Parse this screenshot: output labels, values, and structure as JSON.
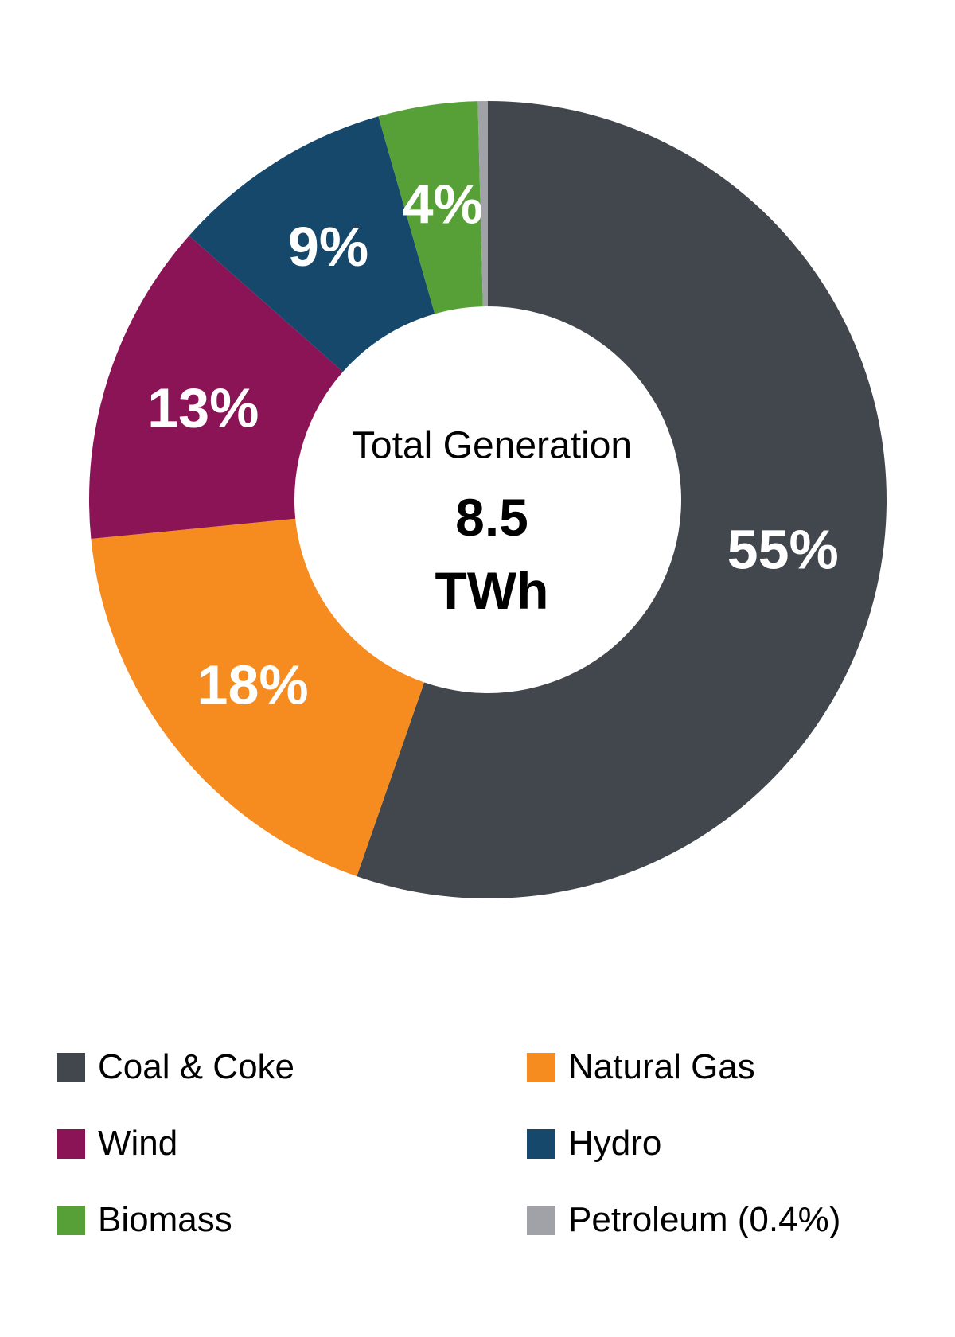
{
  "chart_data": {
    "type": "pie",
    "donut": true,
    "direction": "clockwise",
    "start_angle": 0,
    "background_color": "#ffffff",
    "percent_label_color": "#ffffff",
    "center_label": {
      "line1": "Total Generation",
      "value": "8.5",
      "unit": "TWh"
    },
    "slices": [
      {
        "name": "Coal & Coke",
        "value": 55,
        "percent_label": "55%",
        "color": "#42464d",
        "legend_text": "Coal & Coke"
      },
      {
        "name": "Natural Gas",
        "value": 18,
        "percent_label": "18%",
        "color": "#f68b1f",
        "legend_text": "Natural Gas"
      },
      {
        "name": "Wind",
        "value": 13,
        "percent_label": "13%",
        "color": "#8b1456",
        "legend_text": "Wind"
      },
      {
        "name": "Hydro",
        "value": 9,
        "percent_label": "9%",
        "color": "#15486b",
        "legend_text": "Hydro"
      },
      {
        "name": "Biomass",
        "value": 4,
        "percent_label": "4%",
        "color": "#57a038",
        "legend_text": "Biomass"
      },
      {
        "name": "Petroleum",
        "value": 0.4,
        "percent_label": "",
        "color": "#a0a2a7",
        "legend_text": "Petroleum (0.4%)"
      }
    ],
    "legend": {
      "position": "bottom",
      "columns": [
        [
          0,
          2,
          4
        ],
        [
          1,
          3,
          5
        ]
      ]
    }
  }
}
